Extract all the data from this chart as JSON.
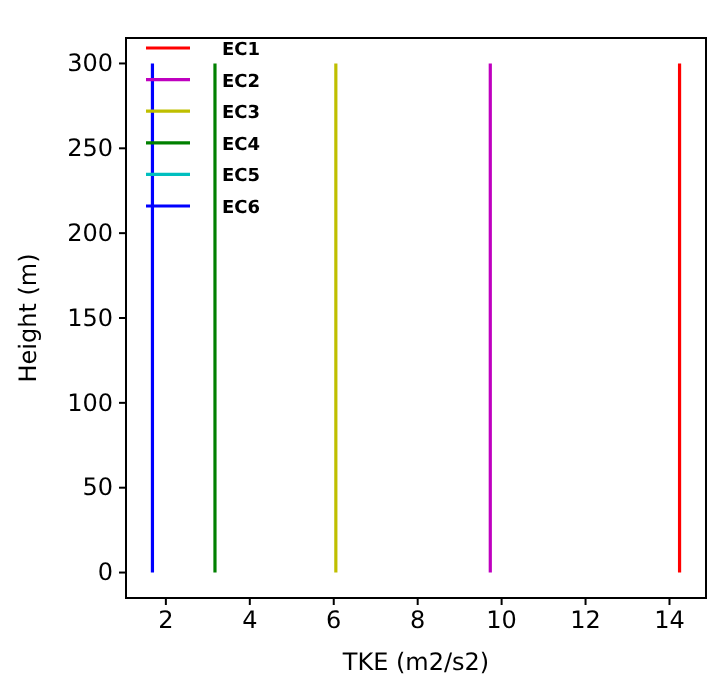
{
  "chart_data": {
    "type": "line",
    "xlabel": "TKE (m2/s2)",
    "ylabel": "Height (m)",
    "xlim": [
      1.05,
      14.87
    ],
    "xticks": [
      2,
      4,
      6,
      8,
      10,
      12,
      14
    ],
    "ylim": [
      -15,
      315
    ],
    "yticks": [
      0,
      50,
      100,
      150,
      200,
      250,
      300
    ],
    "grid": false,
    "legend": "top left",
    "marker": "none",
    "line_style": "solid",
    "series": [
      {
        "name": "EC1",
        "color": "#ff0000",
        "x": [
          14.24,
          14.24
        ],
        "values": [
          0,
          300
        ]
      },
      {
        "name": "EC2",
        "color": "#bf00bf",
        "x": [
          9.73,
          9.73
        ],
        "values": [
          0,
          300
        ]
      },
      {
        "name": "EC3",
        "color": "#bfbf00",
        "x": [
          6.05,
          6.05
        ],
        "values": [
          0,
          300
        ]
      },
      {
        "name": "EC4",
        "color": "#008000",
        "x": [
          3.17,
          3.17
        ],
        "values": [
          0,
          300
        ]
      },
      {
        "name": "EC5",
        "color": "#00bfbf",
        "values": [
          null,
          null
        ]
      },
      {
        "name": "EC6",
        "color": "#0000ff",
        "x": [
          1.68,
          1.68
        ],
        "values": [
          0,
          300
        ]
      }
    ]
  }
}
